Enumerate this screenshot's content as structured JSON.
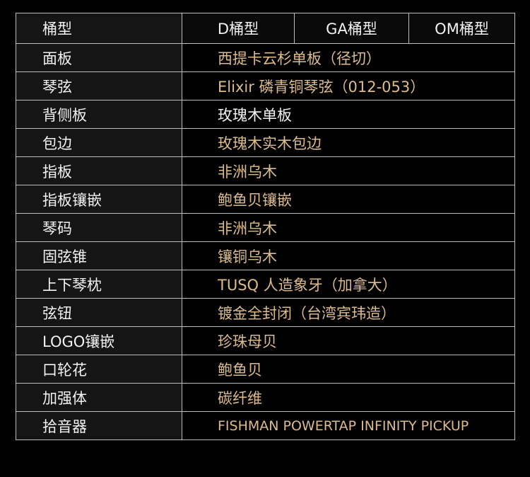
{
  "header": {
    "label": "桶型",
    "columns": [
      "D桶型",
      "GA桶型",
      "OM桶型"
    ]
  },
  "rows": [
    {
      "label": "面板",
      "value": "西提卡云杉单板（径切）"
    },
    {
      "label": "琴弦",
      "value": "Elixir 磷青铜琴弦（012-053）"
    },
    {
      "label": "背侧板",
      "value": "玫瑰木单板"
    },
    {
      "label": "包边",
      "value": "玫瑰木实木包边"
    },
    {
      "label": "指板",
      "value": "非洲乌木"
    },
    {
      "label": "指板镶嵌",
      "value": "鲍鱼贝镶嵌"
    },
    {
      "label": "琴码",
      "value": "非洲乌木"
    },
    {
      "label": "固弦锥",
      "value": "镶铜乌木"
    },
    {
      "label": "上下琴枕",
      "value": "TUSQ 人造象牙（加拿大）"
    },
    {
      "label": "弦钮",
      "value": "镀金全封闭（台湾宾玮造）"
    },
    {
      "label": "LOGO镶嵌",
      "value": "珍珠母贝"
    },
    {
      "label": "口轮花",
      "value": "鲍鱼贝"
    },
    {
      "label": "加强体",
      "value": "碳纤维"
    },
    {
      "label": "拾音器",
      "value": "FISHMAN POWERTAP INFINITY PICKUP"
    }
  ],
  "colors": {
    "gold": "#dcbc8c",
    "white": "#f2f2f2"
  }
}
